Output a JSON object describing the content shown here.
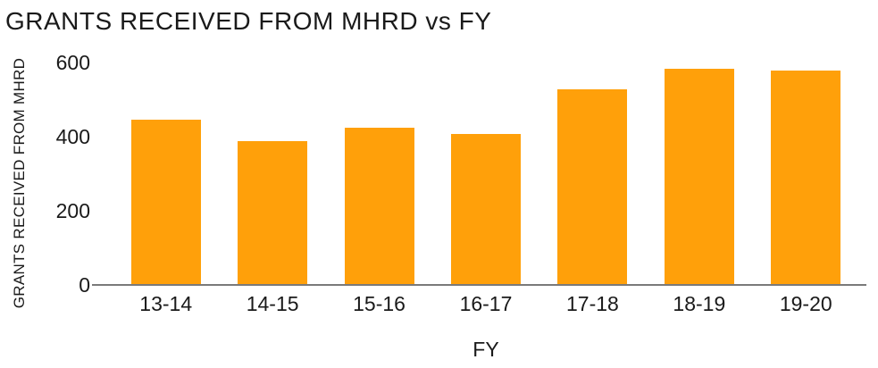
{
  "chart_data": {
    "type": "bar",
    "title": "GRANTS RECEIVED FROM MHRD vs FY",
    "xlabel": "FY",
    "ylabel": "GRANTS RECEIVED FROM MHRD",
    "categories": [
      "13-14",
      "14-15",
      "15-16",
      "16-17",
      "17-18",
      "18-19",
      "19-20"
    ],
    "values": [
      447,
      389,
      423,
      407,
      528,
      583,
      578
    ],
    "ylim": [
      0,
      600
    ],
    "yticks": [
      0,
      200,
      400,
      600
    ],
    "grid": false,
    "legend_position": "none",
    "bar_color": "#FFA00A",
    "axis_line_color": "#7A7A7A",
    "text_color": "#1A1A1A",
    "background_color": "#FFFFFF"
  }
}
